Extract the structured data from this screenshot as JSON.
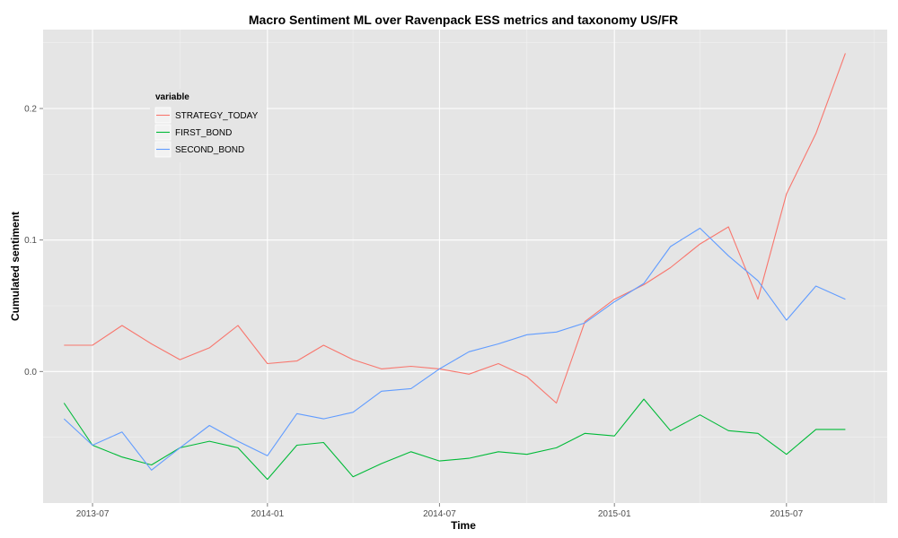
{
  "chart_data": {
    "type": "line",
    "title": "Macro Sentiment ML over Ravenpack ESS metrics and taxonomy US/FR",
    "xlabel": "Time",
    "ylabel": "Cumulated sentiment",
    "x_tick_labels": [
      "2013-07",
      "2014-01",
      "2014-07",
      "2015-01",
      "2015-07"
    ],
    "y_tick_labels": [
      "0.0",
      "0.1",
      "0.2"
    ],
    "y_ticks": [
      0.0,
      0.1,
      0.2
    ],
    "ylim": [
      -0.1,
      0.26
    ],
    "xlim": [
      "2013-05-10",
      "2015-10-15"
    ],
    "grid": true,
    "legend": {
      "title": "variable",
      "placement": "top-left"
    },
    "x": [
      "2013-06-01",
      "2013-07-01",
      "2013-08-01",
      "2013-09-01",
      "2013-10-01",
      "2013-11-01",
      "2013-12-01",
      "2014-01-01",
      "2014-02-01",
      "2014-03-01",
      "2014-04-01",
      "2014-05-01",
      "2014-06-01",
      "2014-07-01",
      "2014-08-01",
      "2014-09-01",
      "2014-10-01",
      "2014-11-01",
      "2014-12-01",
      "2015-01-01",
      "2015-02-01",
      "2015-03-01",
      "2015-04-01",
      "2015-05-01",
      "2015-06-01",
      "2015-07-01",
      "2015-08-01",
      "2015-09-01"
    ],
    "series": [
      {
        "name": "STRATEGY_TODAY",
        "color": "#F8766D",
        "values": [
          0.02,
          0.02,
          0.035,
          0.021,
          0.009,
          0.018,
          0.035,
          0.006,
          0.008,
          0.02,
          0.009,
          0.002,
          0.004,
          0.002,
          -0.002,
          0.006,
          -0.004,
          -0.024,
          0.038,
          0.055,
          0.066,
          0.079,
          0.097,
          0.11,
          0.055,
          0.135,
          0.181,
          0.242
        ]
      },
      {
        "name": "FIRST_BOND",
        "color": "#00BA38",
        "values": [
          -0.024,
          -0.056,
          -0.065,
          -0.071,
          -0.058,
          -0.053,
          -0.058,
          -0.082,
          -0.056,
          -0.054,
          -0.08,
          -0.07,
          -0.061,
          -0.068,
          -0.066,
          -0.061,
          -0.063,
          -0.058,
          -0.047,
          -0.049,
          -0.021,
          -0.045,
          -0.033,
          -0.045,
          -0.047,
          -0.063,
          -0.044,
          -0.044
        ]
      },
      {
        "name": "SECOND_BOND",
        "color": "#619CFF",
        "values": [
          -0.036,
          -0.056,
          -0.046,
          -0.075,
          -0.058,
          -0.041,
          -0.053,
          -0.064,
          -0.032,
          -0.036,
          -0.031,
          -0.015,
          -0.013,
          0.002,
          0.015,
          0.021,
          0.028,
          0.03,
          0.037,
          0.053,
          0.067,
          0.095,
          0.109,
          0.088,
          0.069,
          0.039,
          0.065,
          0.055
        ]
      }
    ]
  }
}
